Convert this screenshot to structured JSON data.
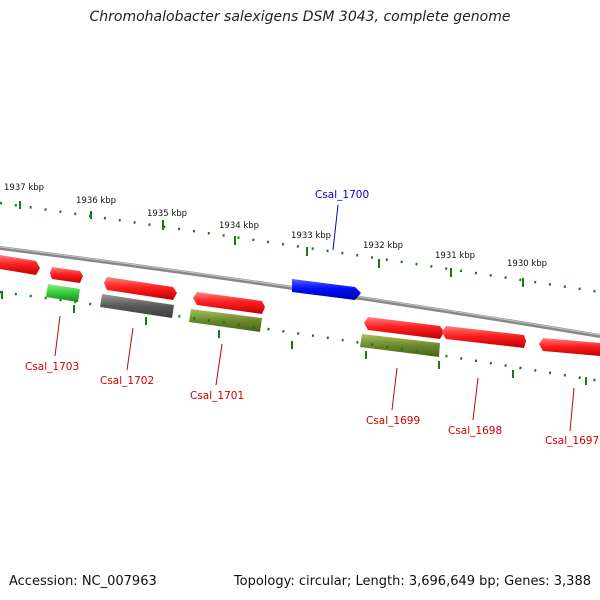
{
  "title": "Chromohalobacter salexigens DSM 3043, complete genome",
  "footer": {
    "accession": "Accession: NC_007963",
    "stats": "Topology: circular; Length: 3,696,649 bp; Genes: 3,388"
  },
  "ruler": [
    {
      "label": "1937 kbp"
    },
    {
      "label": "1936 kbp"
    },
    {
      "label": "1935 kbp"
    },
    {
      "label": "1934 kbp"
    },
    {
      "label": "1933 kbp"
    },
    {
      "label": "1932 kbp"
    },
    {
      "label": "1931 kbp"
    },
    {
      "label": "1930 kbp"
    }
  ],
  "genes": [
    {
      "name": "Csal_1703",
      "color": "#ff2a2a"
    },
    {
      "name": "Csal_1702",
      "color": "#ff2a2a"
    },
    {
      "name": "Csal_1701",
      "color": "#ff2a2a"
    },
    {
      "name": "Csal_1700",
      "color": "#0000ff"
    },
    {
      "name": "Csal_1699",
      "color": "#ff2a2a"
    },
    {
      "name": "Csal_1698",
      "color": "#ff2a2a"
    },
    {
      "name": "Csal_1697",
      "color": "#ff2a2a"
    }
  ],
  "colors": {
    "forward_gene": "#ff2a2a",
    "highlight_gene": "#0000ff",
    "green_feature": "#44cc44",
    "grey_feature": "#666666",
    "olive_feature": "#6b8a2a",
    "backbone": "#888888",
    "tick": "#1a7a1a",
    "label_red": "#cc0000",
    "label_blue": "#0000cc"
  }
}
